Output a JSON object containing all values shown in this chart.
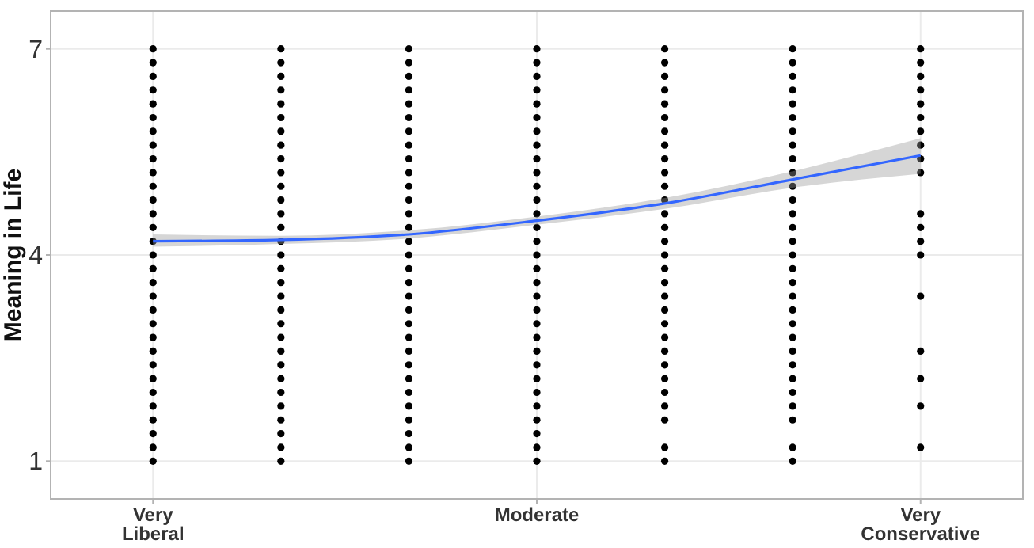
{
  "chart_data": {
    "type": "scatter",
    "ylabel": "Meaning in Life",
    "categories": [
      "Very Liberal",
      null,
      null,
      "Moderate",
      null,
      null,
      "Very Conservative"
    ],
    "ylim": [
      0.45,
      7.55
    ],
    "yticks": [
      1,
      4,
      7
    ],
    "grid": true,
    "marker": "circle",
    "series": [
      {
        "color": "#000000",
        "values": [
          7,
          7,
          7,
          7,
          7,
          7,
          7
        ]
      },
      {
        "color": "#000000",
        "values": [
          6.8,
          6.8,
          6.8,
          6.8,
          6.8,
          6.8,
          6.8
        ]
      },
      {
        "color": "#000000",
        "values": [
          6.6,
          6.6,
          6.6,
          6.6,
          6.6,
          6.6,
          6.6
        ]
      },
      {
        "color": "#000000",
        "values": [
          6.4,
          6.4,
          6.4,
          6.4,
          6.4,
          6.4,
          6.4
        ]
      },
      {
        "color": "#000000",
        "values": [
          6.2,
          6.2,
          6.2,
          6.2,
          6.2,
          6.2,
          6.2
        ]
      },
      {
        "color": "#000000",
        "values": [
          6,
          6,
          6,
          6,
          6,
          6,
          6
        ]
      },
      {
        "color": "#000000",
        "values": [
          5.8,
          5.8,
          5.8,
          5.8,
          5.8,
          5.8,
          5.8
        ]
      },
      {
        "color": "#000000",
        "values": [
          5.6,
          5.6,
          5.6,
          5.6,
          5.6,
          5.6,
          5.6
        ]
      },
      {
        "color": "#000000",
        "values": [
          5.4,
          5.4,
          5.4,
          5.4,
          5.4,
          5.4,
          5.4
        ]
      },
      {
        "color": "#000000",
        "values": [
          5.2,
          5.2,
          5.2,
          5.2,
          5.2,
          5.2,
          5.2
        ]
      },
      {
        "color": "#000000",
        "values": [
          5,
          5,
          5,
          5,
          5,
          5,
          null
        ]
      },
      {
        "color": "#000000",
        "values": [
          4.8,
          4.8,
          4.8,
          4.8,
          4.8,
          4.8,
          null
        ]
      },
      {
        "color": "#000000",
        "values": [
          4.6,
          4.6,
          4.6,
          4.6,
          4.6,
          4.6,
          4.6
        ]
      },
      {
        "color": "#000000",
        "values": [
          4.4,
          4.4,
          4.4,
          4.4,
          4.4,
          4.4,
          4.4
        ]
      },
      {
        "color": "#000000",
        "values": [
          4.2,
          4.2,
          4.2,
          4.2,
          4.2,
          4.2,
          4.2
        ]
      },
      {
        "color": "#000000",
        "values": [
          4,
          4,
          4,
          4,
          4,
          4,
          4
        ]
      },
      {
        "color": "#000000",
        "values": [
          3.8,
          3.8,
          3.8,
          3.8,
          3.8,
          3.8,
          null
        ]
      },
      {
        "color": "#000000",
        "values": [
          3.6,
          3.6,
          3.6,
          3.6,
          3.6,
          3.6,
          null
        ]
      },
      {
        "color": "#000000",
        "values": [
          3.4,
          3.4,
          3.4,
          3.4,
          3.4,
          3.4,
          3.4
        ]
      },
      {
        "color": "#000000",
        "values": [
          3.2,
          3.2,
          3.2,
          3.2,
          3.2,
          3.2,
          null
        ]
      },
      {
        "color": "#000000",
        "values": [
          3,
          3,
          3,
          3,
          3,
          3,
          null
        ]
      },
      {
        "color": "#000000",
        "values": [
          2.8,
          2.8,
          2.8,
          2.8,
          2.8,
          2.8,
          null
        ]
      },
      {
        "color": "#000000",
        "values": [
          2.6,
          2.6,
          2.6,
          2.6,
          2.6,
          2.6,
          2.6
        ]
      },
      {
        "color": "#000000",
        "values": [
          2.4,
          2.4,
          2.4,
          2.4,
          2.4,
          2.4,
          null
        ]
      },
      {
        "color": "#000000",
        "values": [
          2.2,
          2.2,
          2.2,
          2.2,
          2.2,
          2.2,
          2.2
        ]
      },
      {
        "color": "#000000",
        "values": [
          2,
          2,
          2,
          2,
          2,
          2,
          null
        ]
      },
      {
        "color": "#000000",
        "values": [
          1.8,
          1.8,
          1.8,
          1.8,
          1.8,
          1.8,
          1.8
        ]
      },
      {
        "color": "#000000",
        "values": [
          1.6,
          1.6,
          1.6,
          1.6,
          1.6,
          1.6,
          null
        ]
      },
      {
        "color": "#000000",
        "values": [
          1.4,
          1.4,
          1.4,
          1.4,
          null,
          null,
          null
        ]
      },
      {
        "color": "#000000",
        "values": [
          1.2,
          1.2,
          1.2,
          1.2,
          1.2,
          1.2,
          1.2
        ]
      },
      {
        "color": "#000000",
        "values": [
          1,
          1,
          1,
          1,
          1,
          1,
          null
        ]
      },
      {
        "type": "line",
        "marker": "none",
        "color": "#3366ff",
        "values": [
          4.2,
          4.22,
          4.3,
          4.5,
          4.75,
          5.1,
          5.45
        ],
        "lower": [
          4.12,
          4.16,
          4.24,
          4.44,
          4.67,
          4.98,
          5.18
        ],
        "upper": [
          4.3,
          4.28,
          4.36,
          4.56,
          4.83,
          5.22,
          5.7
        ]
      }
    ]
  }
}
